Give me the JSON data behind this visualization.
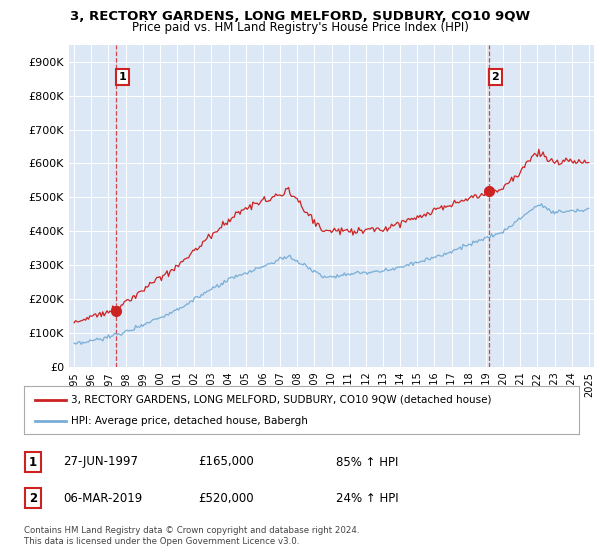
{
  "title": "3, RECTORY GARDENS, LONG MELFORD, SUDBURY, CO10 9QW",
  "subtitle": "Price paid vs. HM Land Registry's House Price Index (HPI)",
  "hpi_label": "HPI: Average price, detached house, Babergh",
  "property_label": "3, RECTORY GARDENS, LONG MELFORD, SUDBURY, CO10 9QW (detached house)",
  "sale1_date": "27-JUN-1997",
  "sale1_price": 165000,
  "sale1_pct": "85% ↑ HPI",
  "sale2_date": "06-MAR-2019",
  "sale2_price": 520000,
  "sale2_pct": "24% ↑ HPI",
  "copyright": "Contains HM Land Registry data © Crown copyright and database right 2024.\nThis data is licensed under the Open Government Licence v3.0.",
  "hpi_color": "#7aaed6",
  "property_color": "#cc2222",
  "plot_bg_color": "#dce8f5",
  "ylim": [
    0,
    950000
  ],
  "xlim_start": 1994.7,
  "xlim_end": 2025.3,
  "sale1_x": 1997.46,
  "sale2_x": 2019.17
}
